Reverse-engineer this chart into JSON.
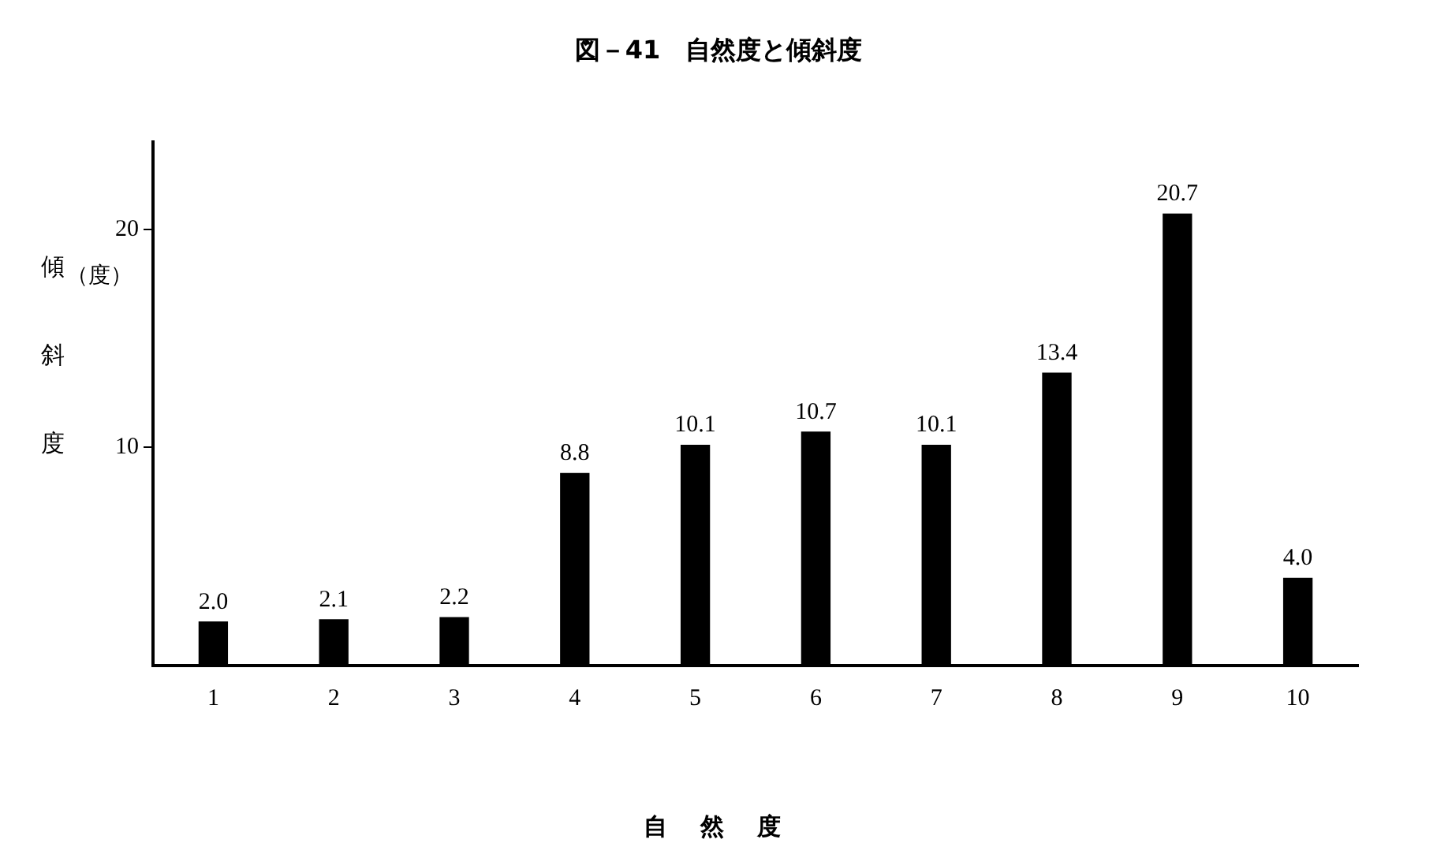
{
  "chart_data": {
    "type": "bar",
    "title": "図－41　自然度と傾斜度",
    "xlabel": "自 然 度",
    "ylabel": "傾斜度",
    "annotations": [
      "（度）"
    ],
    "categories": [
      "1",
      "2",
      "3",
      "4",
      "5",
      "6",
      "7",
      "8",
      "9",
      "10"
    ],
    "values": [
      2.0,
      2.1,
      2.2,
      8.8,
      10.1,
      10.7,
      10.1,
      13.4,
      20.7,
      4.0
    ],
    "value_labels": [
      "2.0",
      "2.1",
      "2.2",
      "8.8",
      "10.1",
      "10.7",
      "10.1",
      "13.4",
      "20.7",
      "4.0"
    ],
    "color": "#000000",
    "ylim": [
      0,
      24
    ],
    "yticks": [
      10,
      20
    ],
    "grid": false,
    "legend": false
  }
}
